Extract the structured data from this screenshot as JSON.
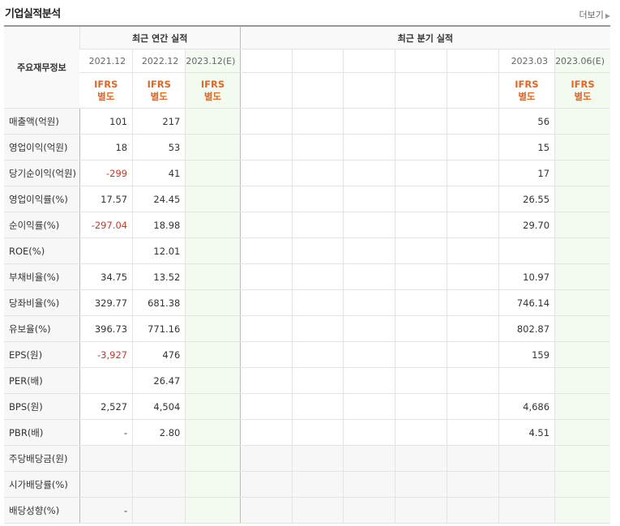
{
  "header": {
    "title": "기업실적분석",
    "more_label": "더보기"
  },
  "table": {
    "corner_label": "주요재무정보",
    "annual_label": "최근 연간 실적",
    "quarter_label": "최근 분기 실적",
    "periods": [
      "2021.12",
      "2022.12",
      "2023.12(E)",
      "",
      "",
      "",
      "",
      "",
      "2023.03",
      "2023.06(E)"
    ],
    "accounting": [
      "IFRS\n별도",
      "IFRS\n별도",
      "IFRS\n별도",
      "",
      "",
      "",
      "",
      "",
      "IFRS\n별도",
      "IFRS\n별도"
    ],
    "rows": [
      {
        "label": "매출액(억원)",
        "values": [
          "101",
          "217",
          "",
          "",
          "",
          "",
          "",
          "",
          "56",
          ""
        ]
      },
      {
        "label": "영업이익(억원)",
        "values": [
          "18",
          "53",
          "",
          "",
          "",
          "",
          "",
          "",
          "15",
          ""
        ]
      },
      {
        "label": "당기순이익(억원)",
        "values": [
          "-299",
          "41",
          "",
          "",
          "",
          "",
          "",
          "",
          "17",
          ""
        ]
      },
      {
        "label": "영업이익률(%)",
        "values": [
          "17.57",
          "24.45",
          "",
          "",
          "",
          "",
          "",
          "",
          "26.55",
          ""
        ]
      },
      {
        "label": "순이익률(%)",
        "values": [
          "-297.04",
          "18.98",
          "",
          "",
          "",
          "",
          "",
          "",
          "29.70",
          ""
        ]
      },
      {
        "label": "ROE(%)",
        "values": [
          "",
          "12.01",
          "",
          "",
          "",
          "",
          "",
          "",
          "",
          ""
        ]
      },
      {
        "label": "부채비율(%)",
        "values": [
          "34.75",
          "13.52",
          "",
          "",
          "",
          "",
          "",
          "",
          "10.97",
          ""
        ]
      },
      {
        "label": "당좌비율(%)",
        "values": [
          "329.77",
          "681.38",
          "",
          "",
          "",
          "",
          "",
          "",
          "746.14",
          ""
        ]
      },
      {
        "label": "유보율(%)",
        "values": [
          "396.73",
          "771.16",
          "",
          "",
          "",
          "",
          "",
          "",
          "802.87",
          ""
        ]
      },
      {
        "label": "EPS(원)",
        "values": [
          "-3,927",
          "476",
          "",
          "",
          "",
          "",
          "",
          "",
          "159",
          ""
        ]
      },
      {
        "label": "PER(배)",
        "values": [
          "",
          "26.47",
          "",
          "",
          "",
          "",
          "",
          "",
          "",
          ""
        ]
      },
      {
        "label": "BPS(원)",
        "values": [
          "2,527",
          "4,504",
          "",
          "",
          "",
          "",
          "",
          "",
          "4,686",
          ""
        ]
      },
      {
        "label": "PBR(배)",
        "values": [
          "-",
          "2.80",
          "",
          "",
          "",
          "",
          "",
          "",
          "4.51",
          ""
        ]
      },
      {
        "label": "주당배당금(원)",
        "values": [
          "",
          "",
          "",
          "",
          "",
          "",
          "",
          "",
          "",
          ""
        ]
      },
      {
        "label": "시가배당률(%)",
        "values": [
          "",
          "",
          "",
          "",
          "",
          "",
          "",
          "",
          "",
          ""
        ]
      },
      {
        "label": "배당성향(%)",
        "values": [
          "-",
          "",
          "",
          "",
          "",
          "",
          "",
          "",
          "",
          ""
        ]
      }
    ]
  }
}
